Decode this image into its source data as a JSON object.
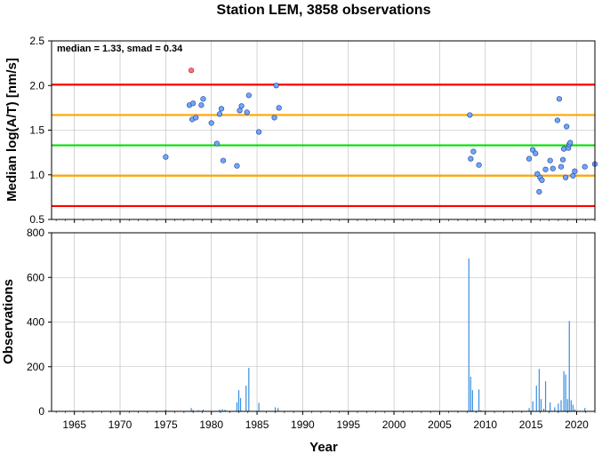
{
  "title": "Station LEM, 3858 observations",
  "chart_data": [
    {
      "type": "scatter",
      "ylabel": "Median log(A/T) [nm/s]",
      "xlim": [
        1962.5,
        2022
      ],
      "ylim": [
        0.5,
        2.5
      ],
      "yticks": [
        "0.5",
        "1.0",
        "1.5",
        "2.0",
        "2.5"
      ],
      "annotation": "median = 1.33, smad = 0.34",
      "grid": true,
      "reference_lines": [
        {
          "y": 2.01,
          "color": "#ff0000"
        },
        {
          "y": 1.67,
          "color": "#ffa500"
        },
        {
          "y": 1.33,
          "color": "#00e000"
        },
        {
          "y": 0.99,
          "color": "#ffa500"
        },
        {
          "y": 0.65,
          "color": "#ff0000"
        }
      ],
      "point_color": "#6fa6ff",
      "outlier_color": "#ff7070",
      "points": [
        [
          1975.0,
          1.2
        ],
        [
          1977.6,
          1.78
        ],
        [
          1977.9,
          1.62
        ],
        [
          1978.0,
          1.8
        ],
        [
          1978.3,
          1.64
        ],
        [
          1978.9,
          1.78
        ],
        [
          1979.1,
          1.85
        ],
        [
          1980.0,
          1.58
        ],
        [
          1980.6,
          1.35
        ],
        [
          1980.9,
          1.68
        ],
        [
          1981.1,
          1.74
        ],
        [
          1981.3,
          1.16
        ],
        [
          1982.8,
          1.1
        ],
        [
          1983.1,
          1.72
        ],
        [
          1983.3,
          1.77
        ],
        [
          1983.9,
          1.7
        ],
        [
          1984.1,
          1.89
        ],
        [
          1985.2,
          1.48
        ],
        [
          1986.9,
          1.64
        ],
        [
          1987.1,
          2.0
        ],
        [
          1987.4,
          1.75
        ],
        [
          2008.3,
          1.67
        ],
        [
          2008.4,
          1.18
        ],
        [
          2008.7,
          1.26
        ],
        [
          2009.3,
          1.11
        ],
        [
          2014.8,
          1.18
        ],
        [
          2015.2,
          1.28
        ],
        [
          2015.5,
          1.24
        ],
        [
          2015.7,
          1.01
        ],
        [
          2015.9,
          0.81
        ],
        [
          2016.0,
          0.97
        ],
        [
          2016.2,
          0.94
        ],
        [
          2016.6,
          1.06
        ],
        [
          2017.1,
          1.16
        ],
        [
          2017.4,
          1.07
        ],
        [
          2017.9,
          1.61
        ],
        [
          2018.1,
          1.85
        ],
        [
          2018.3,
          1.09
        ],
        [
          2018.5,
          1.17
        ],
        [
          2018.6,
          1.29
        ],
        [
          2018.8,
          0.97
        ],
        [
          2018.9,
          1.54
        ],
        [
          2019.1,
          1.3
        ],
        [
          2019.2,
          1.34
        ],
        [
          2019.3,
          1.36
        ],
        [
          2019.6,
          0.99
        ],
        [
          2019.8,
          1.04
        ],
        [
          2020.9,
          1.09
        ],
        [
          2022.0,
          1.12
        ]
      ],
      "outliers": [
        [
          1977.8,
          2.17
        ]
      ]
    },
    {
      "type": "bar",
      "xlabel": "Year",
      "ylabel": "Observations",
      "xlim": [
        1962.5,
        2022
      ],
      "ylim": [
        0,
        800
      ],
      "yticks": [
        "0",
        "200",
        "400",
        "600",
        "800"
      ],
      "xticks": [
        "1965",
        "1970",
        "1975",
        "1980",
        "1985",
        "1990",
        "1995",
        "2000",
        "2005",
        "2010",
        "2015",
        "2020"
      ],
      "grid": true,
      "bar_color": "#3a8fe0",
      "bars": [
        [
          1975.0,
          8
        ],
        [
          1977.8,
          15
        ],
        [
          1978.0,
          6
        ],
        [
          1978.6,
          5
        ],
        [
          1979.1,
          8
        ],
        [
          1980.9,
          8
        ],
        [
          1981.2,
          10
        ],
        [
          1981.5,
          8
        ],
        [
          1982.8,
          40
        ],
        [
          1983.0,
          95
        ],
        [
          1983.2,
          60
        ],
        [
          1983.8,
          115
        ],
        [
          1984.1,
          195
        ],
        [
          1985.2,
          38
        ],
        [
          1987.0,
          18
        ],
        [
          1987.3,
          15
        ],
        [
          2008.2,
          685
        ],
        [
          2008.4,
          155
        ],
        [
          2008.6,
          95
        ],
        [
          2009.3,
          98
        ],
        [
          2009.5,
          5
        ],
        [
          2014.8,
          15
        ],
        [
          2015.2,
          45
        ],
        [
          2015.6,
          115
        ],
        [
          2015.9,
          190
        ],
        [
          2016.1,
          55
        ],
        [
          2016.4,
          12
        ],
        [
          2016.6,
          135
        ],
        [
          2017.1,
          40
        ],
        [
          2017.6,
          18
        ],
        [
          2018.0,
          35
        ],
        [
          2018.3,
          50
        ],
        [
          2018.6,
          180
        ],
        [
          2018.8,
          165
        ],
        [
          2019.0,
          55
        ],
        [
          2019.2,
          405
        ],
        [
          2019.4,
          50
        ],
        [
          2019.6,
          30
        ],
        [
          2019.8,
          10
        ],
        [
          2020.9,
          15
        ]
      ]
    }
  ]
}
